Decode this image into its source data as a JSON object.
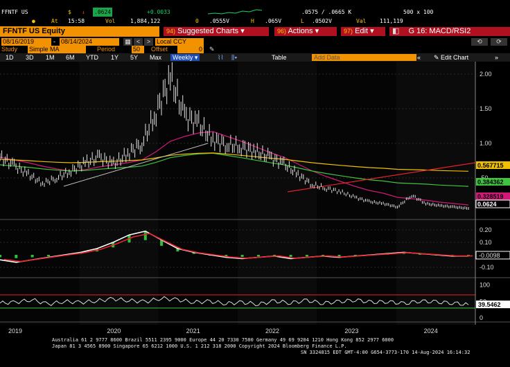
{
  "ticker": {
    "symbol": "FFNTF US",
    "currency_sym": "$",
    "down_arrow": "↓",
    "last": ".0624",
    "change": "+0.0033",
    "at_label": "At",
    "time": "15:58",
    "vol_label": "Vol",
    "volume": "1,884,122",
    "o_label": "0",
    "open": ".0555V",
    "h_label": "H",
    "high": ".065V",
    "l_label": "L",
    "low": ".0502V",
    "val_label": "Val",
    "value": "111,119",
    "bid_ask_label": "K",
    "bid_ask": ".0575 / .0665 K",
    "size": "500 x 100"
  },
  "titlebar": {
    "security": "FFNTF US Equity",
    "suggested_num": "94)",
    "suggested": "Suggested Charts",
    "actions_num": "96)",
    "actions": "Actions",
    "edit_num": "97)",
    "edit": "Edit",
    "chart_name": "G 16: MACD/RSI2"
  },
  "params": {
    "start_date": "08/16/2019",
    "end_date": "08/14/2024",
    "currency": "Local CCY",
    "study_label": "Study",
    "study": "Simple MA",
    "period_label": "Period",
    "period": "50",
    "offset_label": "Offset",
    "offset": "0"
  },
  "toolbar": {
    "ranges": [
      "1D",
      "3D",
      "1M",
      "6M",
      "YTD",
      "1Y",
      "5Y",
      "Max"
    ],
    "frequency": "Weekly",
    "table": "Table",
    "add_data": "Add Data",
    "edit_chart": "Edit Chart"
  },
  "colors": {
    "orange": "#f39200",
    "ma_red": "#e8222a",
    "ma_yellow": "#f0c000",
    "ma_green": "#3ec43e",
    "ma_green2": "#5fe05f",
    "ma_magenta": "#d0187a",
    "trendline": "#bfbfbf"
  },
  "chart_data": {
    "type": "line",
    "title": "",
    "x_labels": [
      "2019",
      "2020",
      "2021",
      "2022",
      "2023",
      "2024"
    ],
    "price_panel": {
      "ylim": [
        0.0,
        2.1
      ],
      "yticks": [
        0.5,
        1.0,
        1.5,
        2.0
      ],
      "ytick_labels": [
        ".50",
        "1.00",
        "1.50",
        "2.00"
      ],
      "series": [
        {
          "name": "Price",
          "values": [
            0.8,
            0.68,
            0.55,
            0.42,
            0.5,
            0.6,
            0.72,
            0.8,
            0.7,
            0.85,
            1.0,
            1.45,
            1.95,
            1.4,
            1.28,
            1.05,
            0.98,
            0.95,
            0.88,
            0.8,
            0.7,
            0.55,
            0.4,
            0.35,
            0.3,
            0.22,
            0.16,
            0.13,
            0.08,
            0.25,
            0.13,
            0.1,
            0.08,
            0.06
          ]
        },
        {
          "name": "SMA 1",
          "values": [
            0.8,
            0.76,
            0.72,
            0.67,
            0.63,
            0.6,
            0.62,
            0.66,
            0.69,
            0.72,
            0.76,
            0.88,
            1.03,
            1.1,
            1.15,
            1.17,
            1.1,
            1.03,
            0.95,
            0.87,
            0.8,
            0.7,
            0.6,
            0.52,
            0.45,
            0.38,
            0.32,
            0.28,
            0.22,
            0.2,
            0.18,
            0.15,
            0.13,
            0.11
          ]
        }
      ],
      "last_price_labels": [
        {
          "label": "0.567715",
          "color": "#f0c000"
        },
        {
          "label": "0.384362",
          "color": "#3ec43e"
        },
        {
          "label": "0.328519",
          "color": "#d0187a"
        },
        {
          "label": "0.0624",
          "color": "#ffffff"
        }
      ]
    },
    "macd_panel": {
      "ylim": [
        -0.15,
        0.25
      ],
      "yticks": [
        0.2,
        0.1,
        -0.1
      ],
      "ytick_labels": [
        "0.20",
        "0.10",
        "-0.10"
      ],
      "last_label": "-0.0098",
      "values": [
        -0.04,
        -0.06,
        -0.04,
        -0.02,
        0.0,
        0.02,
        0.05,
        0.1,
        0.16,
        0.19,
        0.12,
        0.05,
        0.02,
        0.0,
        -0.02,
        -0.03,
        -0.02,
        -0.01,
        -0.03,
        -0.02,
        -0.01,
        -0.02,
        -0.01,
        0.0,
        0.01,
        0.02,
        0.01,
        0.0,
        -0.01,
        -0.01
      ]
    },
    "rsi_panel": {
      "ylim": [
        0,
        110
      ],
      "yticks": [
        100,
        50,
        0
      ],
      "ytick_labels": [
        "100",
        "50",
        "0"
      ],
      "last_label": "39.5462",
      "values": [
        45,
        48,
        55,
        42,
        50,
        47,
        52,
        58,
        53,
        49,
        60,
        55,
        48,
        50,
        44,
        47,
        42,
        51,
        46,
        53,
        45,
        49,
        55,
        47,
        50,
        43,
        52,
        48,
        46,
        40
      ]
    }
  },
  "footer": {
    "line1": "Australia 61 2 9777 8600 Brazil 5511 2395 9000 Europe 44 20 7330 7500 Germany 49 69 9204 1210 Hong Kong 852 2977 6000",
    "line2": "Japan 81 3 4565 8900        Singapore 65 6212 1000        U.S. 1 212 318 2000        Copyright 2024 Bloomberg Finance L.P.",
    "line3": "SN 3324815 EDT  GMT-4:00 G654-3773-170 14-Aug-2024 16:14:32"
  }
}
